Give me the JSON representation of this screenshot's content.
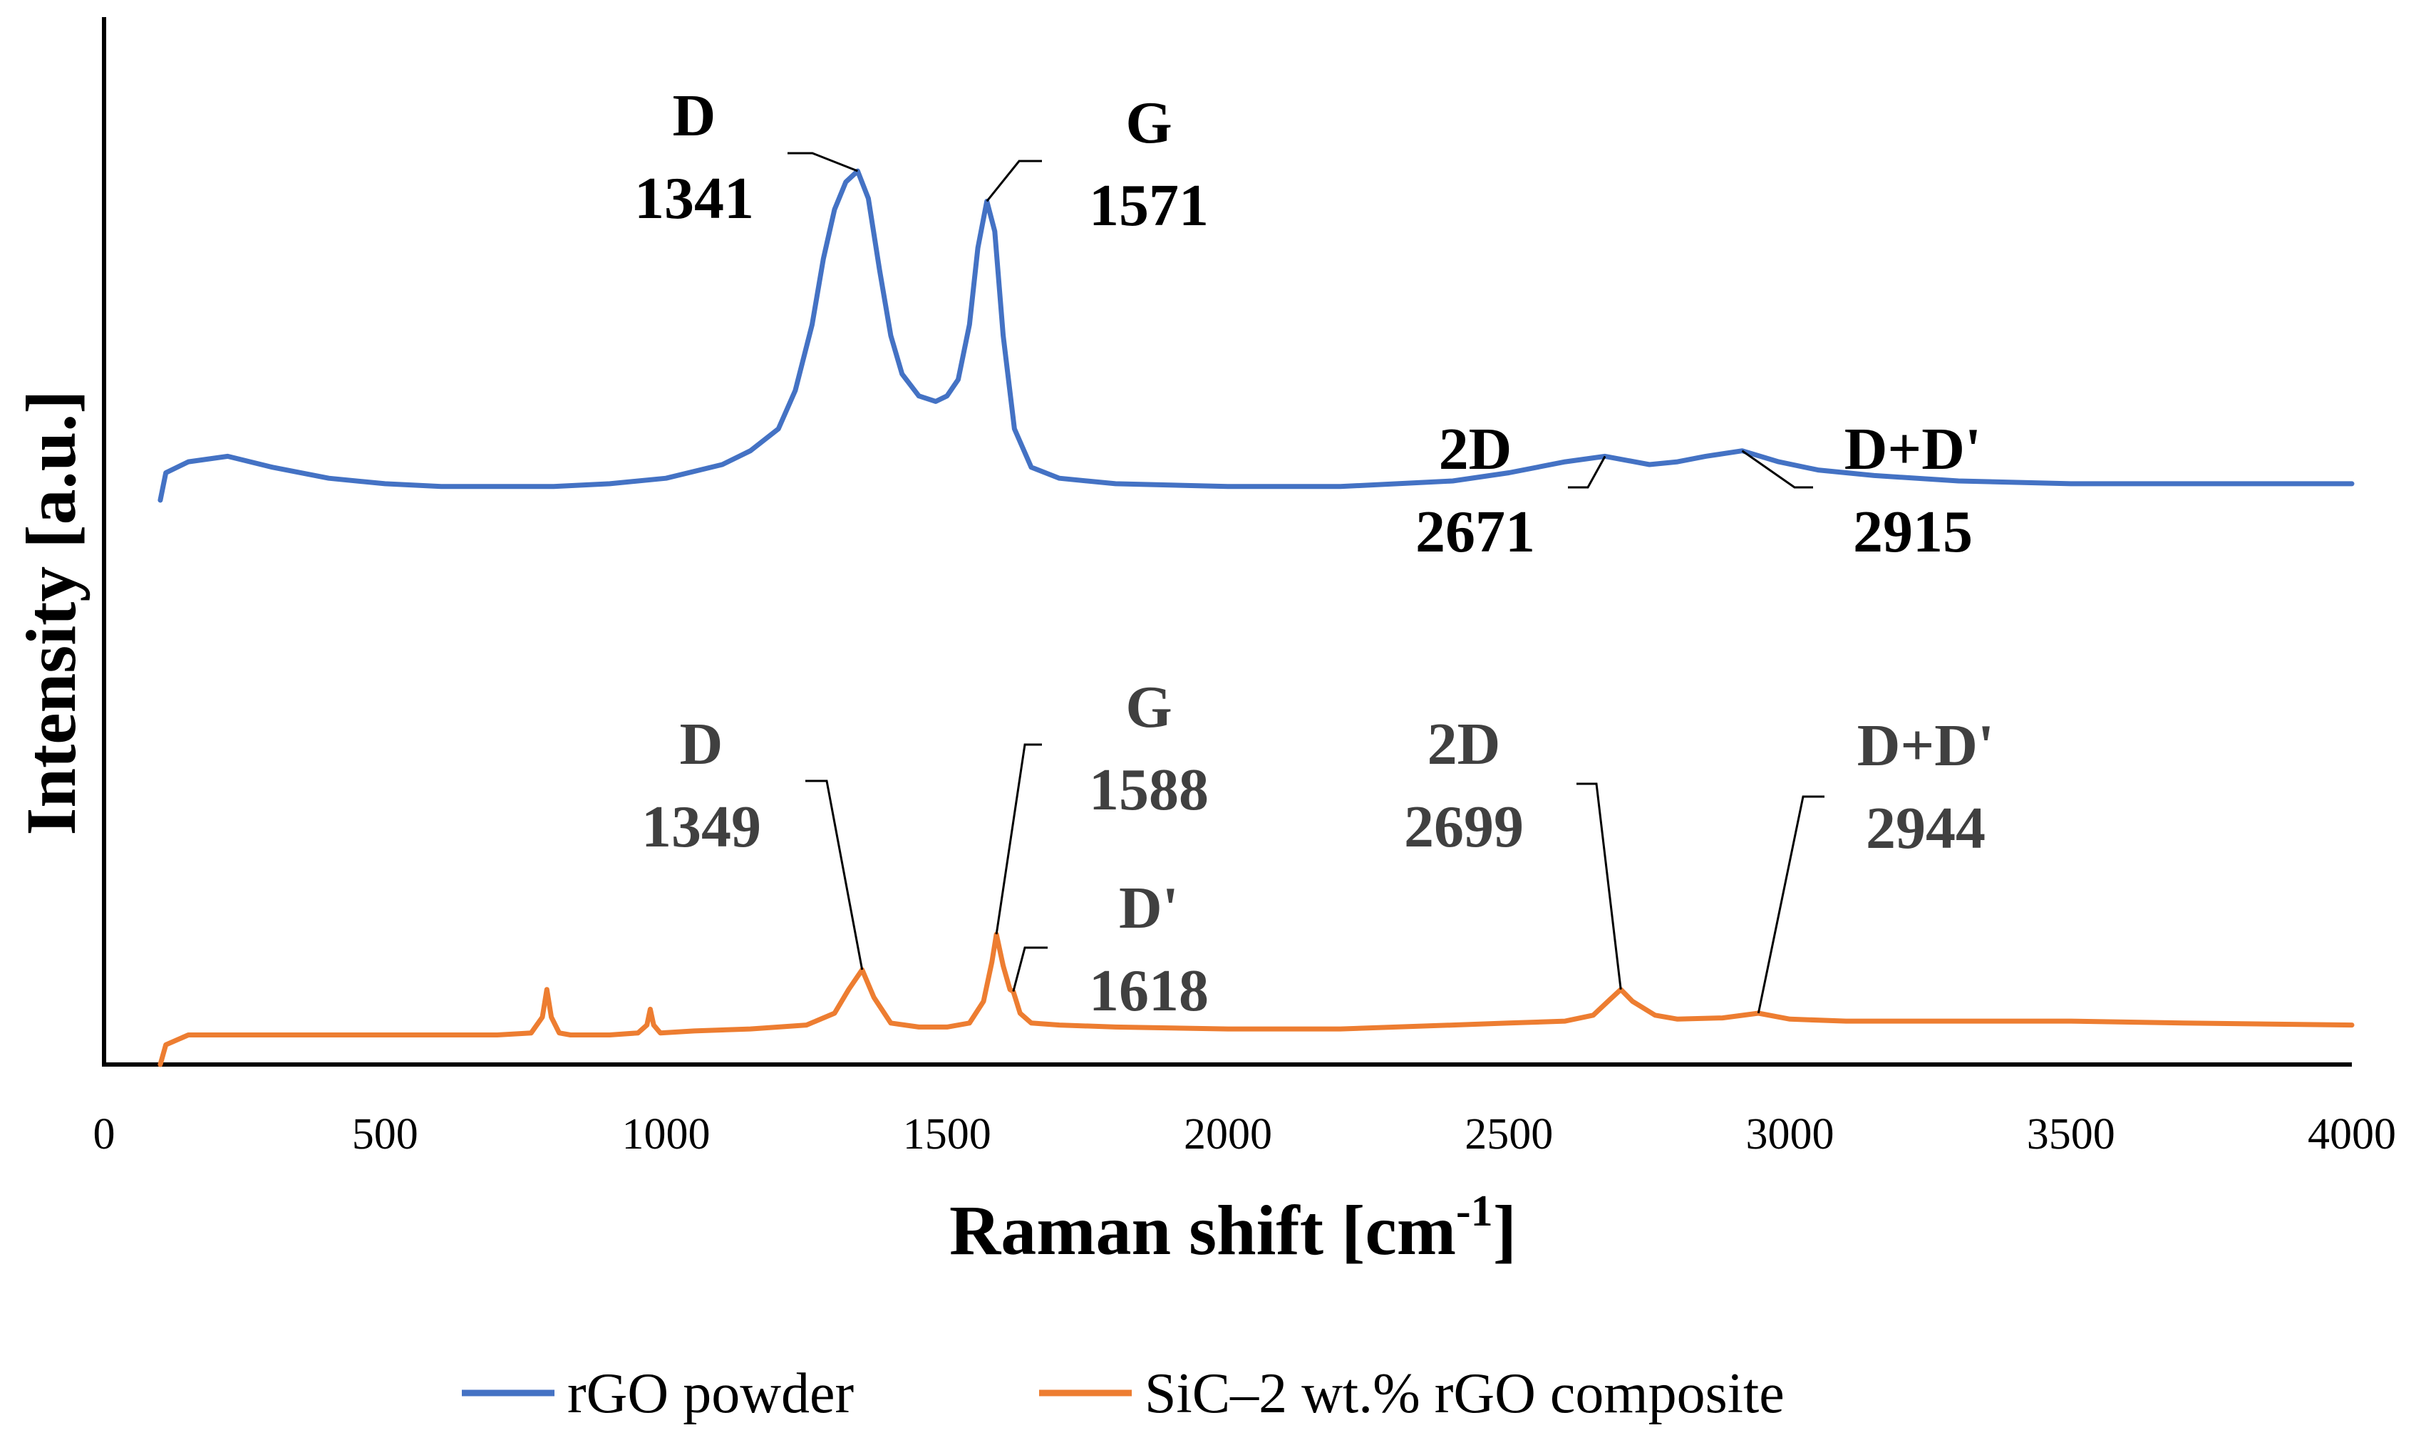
{
  "chart_data": {
    "type": "line",
    "xlabel": "Raman shift [cm",
    "xlabel_superscript": "-1",
    "xlabel_close": "]",
    "ylabel": "Intensity [a.u.]",
    "xlim": [
      0,
      4000
    ],
    "ylim": [
      0,
      1
    ],
    "x_ticks": [
      "0",
      "500",
      "1000",
      "1500",
      "2000",
      "2500",
      "3000",
      "3500",
      "4000"
    ],
    "x_tick_values": [
      0,
      500,
      1000,
      1500,
      2000,
      2500,
      3000,
      3500,
      4000
    ],
    "y_ticks_shown": false,
    "grid": false,
    "legend_position": "bottom",
    "series": [
      {
        "name": "rGO powder",
        "color": "#4472C4",
        "x": [
          100,
          110,
          150,
          220,
          300,
          400,
          500,
          600,
          700,
          800,
          900,
          1000,
          1100,
          1150,
          1200,
          1230,
          1260,
          1280,
          1300,
          1320,
          1341,
          1360,
          1380,
          1400,
          1420,
          1450,
          1480,
          1500,
          1520,
          1540,
          1555,
          1571,
          1585,
          1600,
          1620,
          1650,
          1700,
          1800,
          2000,
          2200,
          2400,
          2500,
          2600,
          2671,
          2750,
          2800,
          2850,
          2915,
          2980,
          3050,
          3150,
          3300,
          3500,
          3700,
          4000
        ],
        "values": [
          0.4,
          0.45,
          0.47,
          0.48,
          0.46,
          0.44,
          0.43,
          0.425,
          0.425,
          0.425,
          0.43,
          0.44,
          0.465,
          0.49,
          0.53,
          0.6,
          0.72,
          0.84,
          0.93,
          0.98,
          1.0,
          0.95,
          0.82,
          0.7,
          0.63,
          0.59,
          0.58,
          0.59,
          0.62,
          0.72,
          0.86,
          0.945,
          0.89,
          0.7,
          0.53,
          0.46,
          0.44,
          0.43,
          0.425,
          0.425,
          0.435,
          0.45,
          0.47,
          0.48,
          0.465,
          0.47,
          0.48,
          0.49,
          0.47,
          0.455,
          0.445,
          0.435,
          0.43,
          0.43,
          0.43
        ],
        "peaks": [
          {
            "label": "D",
            "value": "1341",
            "x": 1341,
            "y": 1.0
          },
          {
            "label": "G",
            "value": "1571",
            "x": 1571,
            "y": 0.945
          },
          {
            "label": "2D",
            "value": "2671",
            "x": 2671,
            "y": 0.48
          },
          {
            "label": "D+D'",
            "value": "2915",
            "x": 2915,
            "y": 0.49
          }
        ]
      },
      {
        "name": "SiC–2 wt.% rGO composite",
        "color": "#ED7D31",
        "x": [
          100,
          110,
          150,
          300,
          500,
          700,
          760,
          780,
          788,
          796,
          810,
          830,
          900,
          950,
          966,
          972,
          978,
          990,
          1050,
          1150,
          1250,
          1300,
          1325,
          1349,
          1370,
          1400,
          1450,
          1500,
          1540,
          1565,
          1580,
          1588,
          1600,
          1612,
          1618,
          1630,
          1650,
          1700,
          1800,
          2000,
          2200,
          2400,
          2500,
          2600,
          2650,
          2680,
          2699,
          2720,
          2760,
          2800,
          2880,
          2944,
          3000,
          3100,
          3300,
          3500,
          3700,
          4000
        ],
        "values": [
          0.0,
          0.05,
          0.075,
          0.075,
          0.075,
          0.075,
          0.08,
          0.12,
          0.19,
          0.12,
          0.08,
          0.075,
          0.075,
          0.08,
          0.1,
          0.14,
          0.1,
          0.08,
          0.085,
          0.09,
          0.1,
          0.13,
          0.19,
          0.24,
          0.17,
          0.105,
          0.095,
          0.095,
          0.105,
          0.16,
          0.26,
          0.33,
          0.25,
          0.19,
          0.185,
          0.13,
          0.105,
          0.1,
          0.095,
          0.09,
          0.09,
          0.1,
          0.105,
          0.11,
          0.125,
          0.165,
          0.19,
          0.16,
          0.125,
          0.115,
          0.118,
          0.13,
          0.115,
          0.11,
          0.11,
          0.11,
          0.105,
          0.1
        ],
        "peaks": [
          {
            "label": "D",
            "value": "1349",
            "x": 1349,
            "y": 0.24
          },
          {
            "label": "G",
            "value": "1588",
            "x": 1588,
            "y": 0.33
          },
          {
            "label": "D'",
            "value": "1618",
            "x": 1618,
            "y": 0.185
          },
          {
            "label": "2D",
            "value": "2699",
            "x": 2699,
            "y": 0.19
          },
          {
            "label": "D+D'",
            "value": "2944",
            "x": 2944,
            "y": 0.13
          }
        ]
      }
    ]
  }
}
